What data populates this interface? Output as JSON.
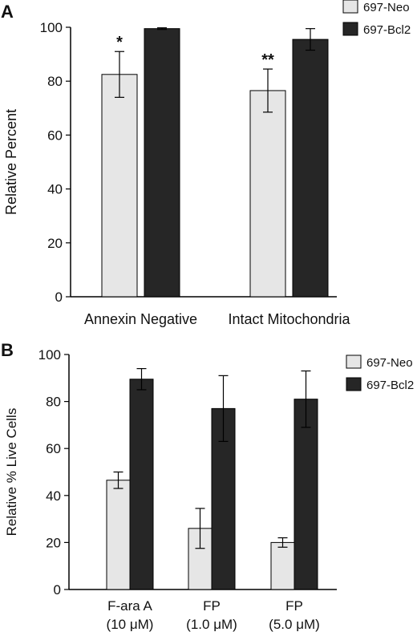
{
  "colors": {
    "neo": "#e6e6e6",
    "bcl2": "#262626",
    "axis": "#000000"
  },
  "chart_data": [
    {
      "panel": "A",
      "type": "bar",
      "ylabel": "Relative Percent",
      "ylim": [
        0,
        100
      ],
      "yticks": [
        0,
        20,
        40,
        60,
        80,
        100
      ],
      "categories": [
        {
          "lines": [
            "Annexin Negative"
          ]
        },
        {
          "lines": [
            "Intact Mitochondria"
          ]
        }
      ],
      "series": [
        {
          "name": "697-Neo",
          "values": [
            82.5,
            76.5
          ],
          "errors": [
            8.5,
            8
          ],
          "color": "#e6e6e6"
        },
        {
          "name": "697-Bcl2",
          "values": [
            99.5,
            95.5
          ],
          "errors": [
            0.3,
            4
          ],
          "color": "#262626"
        }
      ],
      "annotations": [
        {
          "category": 0,
          "series": 0,
          "text": "*"
        },
        {
          "category": 1,
          "series": 0,
          "text": "**"
        }
      ],
      "legend_position": "top-right",
      "grid": false
    },
    {
      "panel": "B",
      "type": "bar",
      "ylabel": "Relative % Live Cells",
      "ylim": [
        0,
        100
      ],
      "yticks": [
        0,
        20,
        40,
        60,
        80,
        100
      ],
      "categories": [
        {
          "lines": [
            "F-ara A",
            "(10 μM)"
          ]
        },
        {
          "lines": [
            "FP",
            "(1.0 μM)"
          ]
        },
        {
          "lines": [
            "FP",
            "(5.0 μM)"
          ]
        }
      ],
      "series": [
        {
          "name": "697-Neo",
          "values": [
            46.5,
            26,
            20
          ],
          "errors": [
            3.5,
            8.5,
            2
          ],
          "color": "#e6e6e6"
        },
        {
          "name": "697-Bcl2",
          "values": [
            89.5,
            77,
            81
          ],
          "errors": [
            4.5,
            14,
            12
          ],
          "color": "#262626"
        }
      ],
      "annotations": [],
      "legend_position": "top-right",
      "grid": false
    }
  ]
}
